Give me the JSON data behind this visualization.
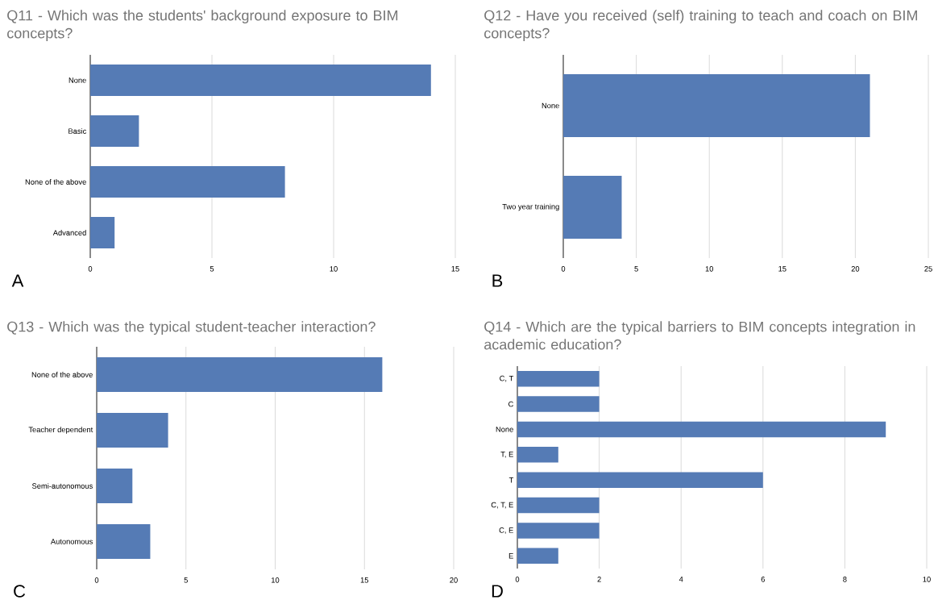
{
  "chart_data": [
    {
      "type": "bar",
      "orientation": "horizontal",
      "title": "Q11 - Which was the students' background exposure to BIM concepts?",
      "categories": [
        "None",
        "Basic",
        "None of the above",
        "Advanced"
      ],
      "values": [
        14,
        2,
        8,
        1
      ],
      "color": "#557bb5",
      "xlim": [
        0,
        15
      ],
      "xticks": [
        0,
        5,
        10,
        15
      ],
      "grid": "x",
      "annotations": [
        "A"
      ]
    },
    {
      "type": "bar",
      "orientation": "horizontal",
      "title": "Q12 - Have you received (self) training to teach and coach on BIM concepts?",
      "categories": [
        "None",
        "Two year training"
      ],
      "values": [
        21,
        4
      ],
      "color": "#557bb5",
      "xlim": [
        0,
        25
      ],
      "xticks": [
        0,
        5,
        10,
        15,
        20,
        25
      ],
      "grid": "x",
      "annotations": [
        "B"
      ]
    },
    {
      "type": "bar",
      "orientation": "horizontal",
      "title": "Q13 - Which was the typical student-teacher interaction?",
      "categories": [
        "None of the above",
        "Teacher dependent",
        "Semi-autonomous",
        "Autonomous"
      ],
      "values": [
        16,
        4,
        2,
        3
      ],
      "color": "#557bb5",
      "xlim": [
        0,
        20
      ],
      "xticks": [
        0,
        5,
        10,
        15,
        20
      ],
      "grid": "x",
      "annotations": [
        "C"
      ]
    },
    {
      "type": "bar",
      "orientation": "horizontal",
      "title": "Q14 - Which are the typical barriers to BIM concepts integration in academic education?",
      "categories": [
        "C, T",
        "C",
        "None",
        "T, E",
        "T",
        "C, T, E",
        "C, E",
        "E"
      ],
      "values": [
        2,
        2,
        9,
        1,
        6,
        2,
        2,
        1
      ],
      "color": "#557bb5",
      "xlim": [
        0,
        10
      ],
      "xticks": [
        0,
        2,
        4,
        6,
        8,
        10
      ],
      "grid": "x",
      "annotations": [
        "D"
      ]
    }
  ]
}
